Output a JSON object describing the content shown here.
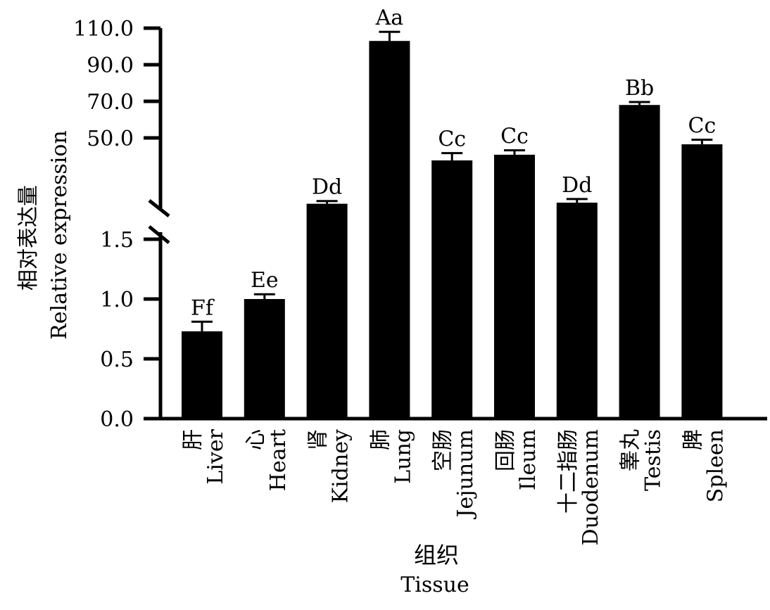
{
  "chart_data": {
    "type": "bar",
    "broken_axis": true,
    "ylabel_cn": "相对表达量",
    "ylabel": "Relative expression",
    "xlabel_cn": "组织",
    "xlabel": "Tissue",
    "lower_ticks": [
      "0.0",
      "0.5",
      "1.0",
      "1.5"
    ],
    "lower_tick_values": [
      0,
      0.5,
      1.0,
      1.5
    ],
    "upper_ticks": [
      "50.0",
      "70.0",
      "90.0",
      "110.0"
    ],
    "upper_tick_values": [
      50,
      70,
      90,
      110
    ],
    "categories": [
      {
        "cn": "肝",
        "en": "Liver",
        "value": 0.73,
        "error": 0.08,
        "label": "Ff",
        "segment": "lower"
      },
      {
        "cn": "心",
        "en": "Heart",
        "value": 1.0,
        "error": 0.04,
        "label": "Ee",
        "segment": "lower"
      },
      {
        "cn": "肾",
        "en": "Kidney",
        "value": 14,
        "error": 1.5,
        "label": "Dd",
        "segment": "upper"
      },
      {
        "cn": "肺",
        "en": "Lung",
        "value": 103,
        "error": 5,
        "label": "Aa",
        "segment": "upper"
      },
      {
        "cn": "空肠",
        "en": "Jejunum",
        "value": 37.7,
        "error": 4,
        "label": "Cc",
        "segment": "upper"
      },
      {
        "cn": "回肠",
        "en": "Ileum",
        "value": 40.8,
        "error": 2.4,
        "label": "Cc",
        "segment": "upper"
      },
      {
        "cn": "十二指肠",
        "en": "Duodenum",
        "value": 14.6,
        "error": 2,
        "label": "Dd",
        "segment": "upper"
      },
      {
        "cn": "睾丸",
        "en": "Testis",
        "value": 68,
        "error": 1.6,
        "label": "Bb",
        "segment": "upper"
      },
      {
        "cn": "脾",
        "en": "Spleen",
        "value": 46.5,
        "error": 2.5,
        "label": "Cc",
        "segment": "upper"
      }
    ]
  }
}
